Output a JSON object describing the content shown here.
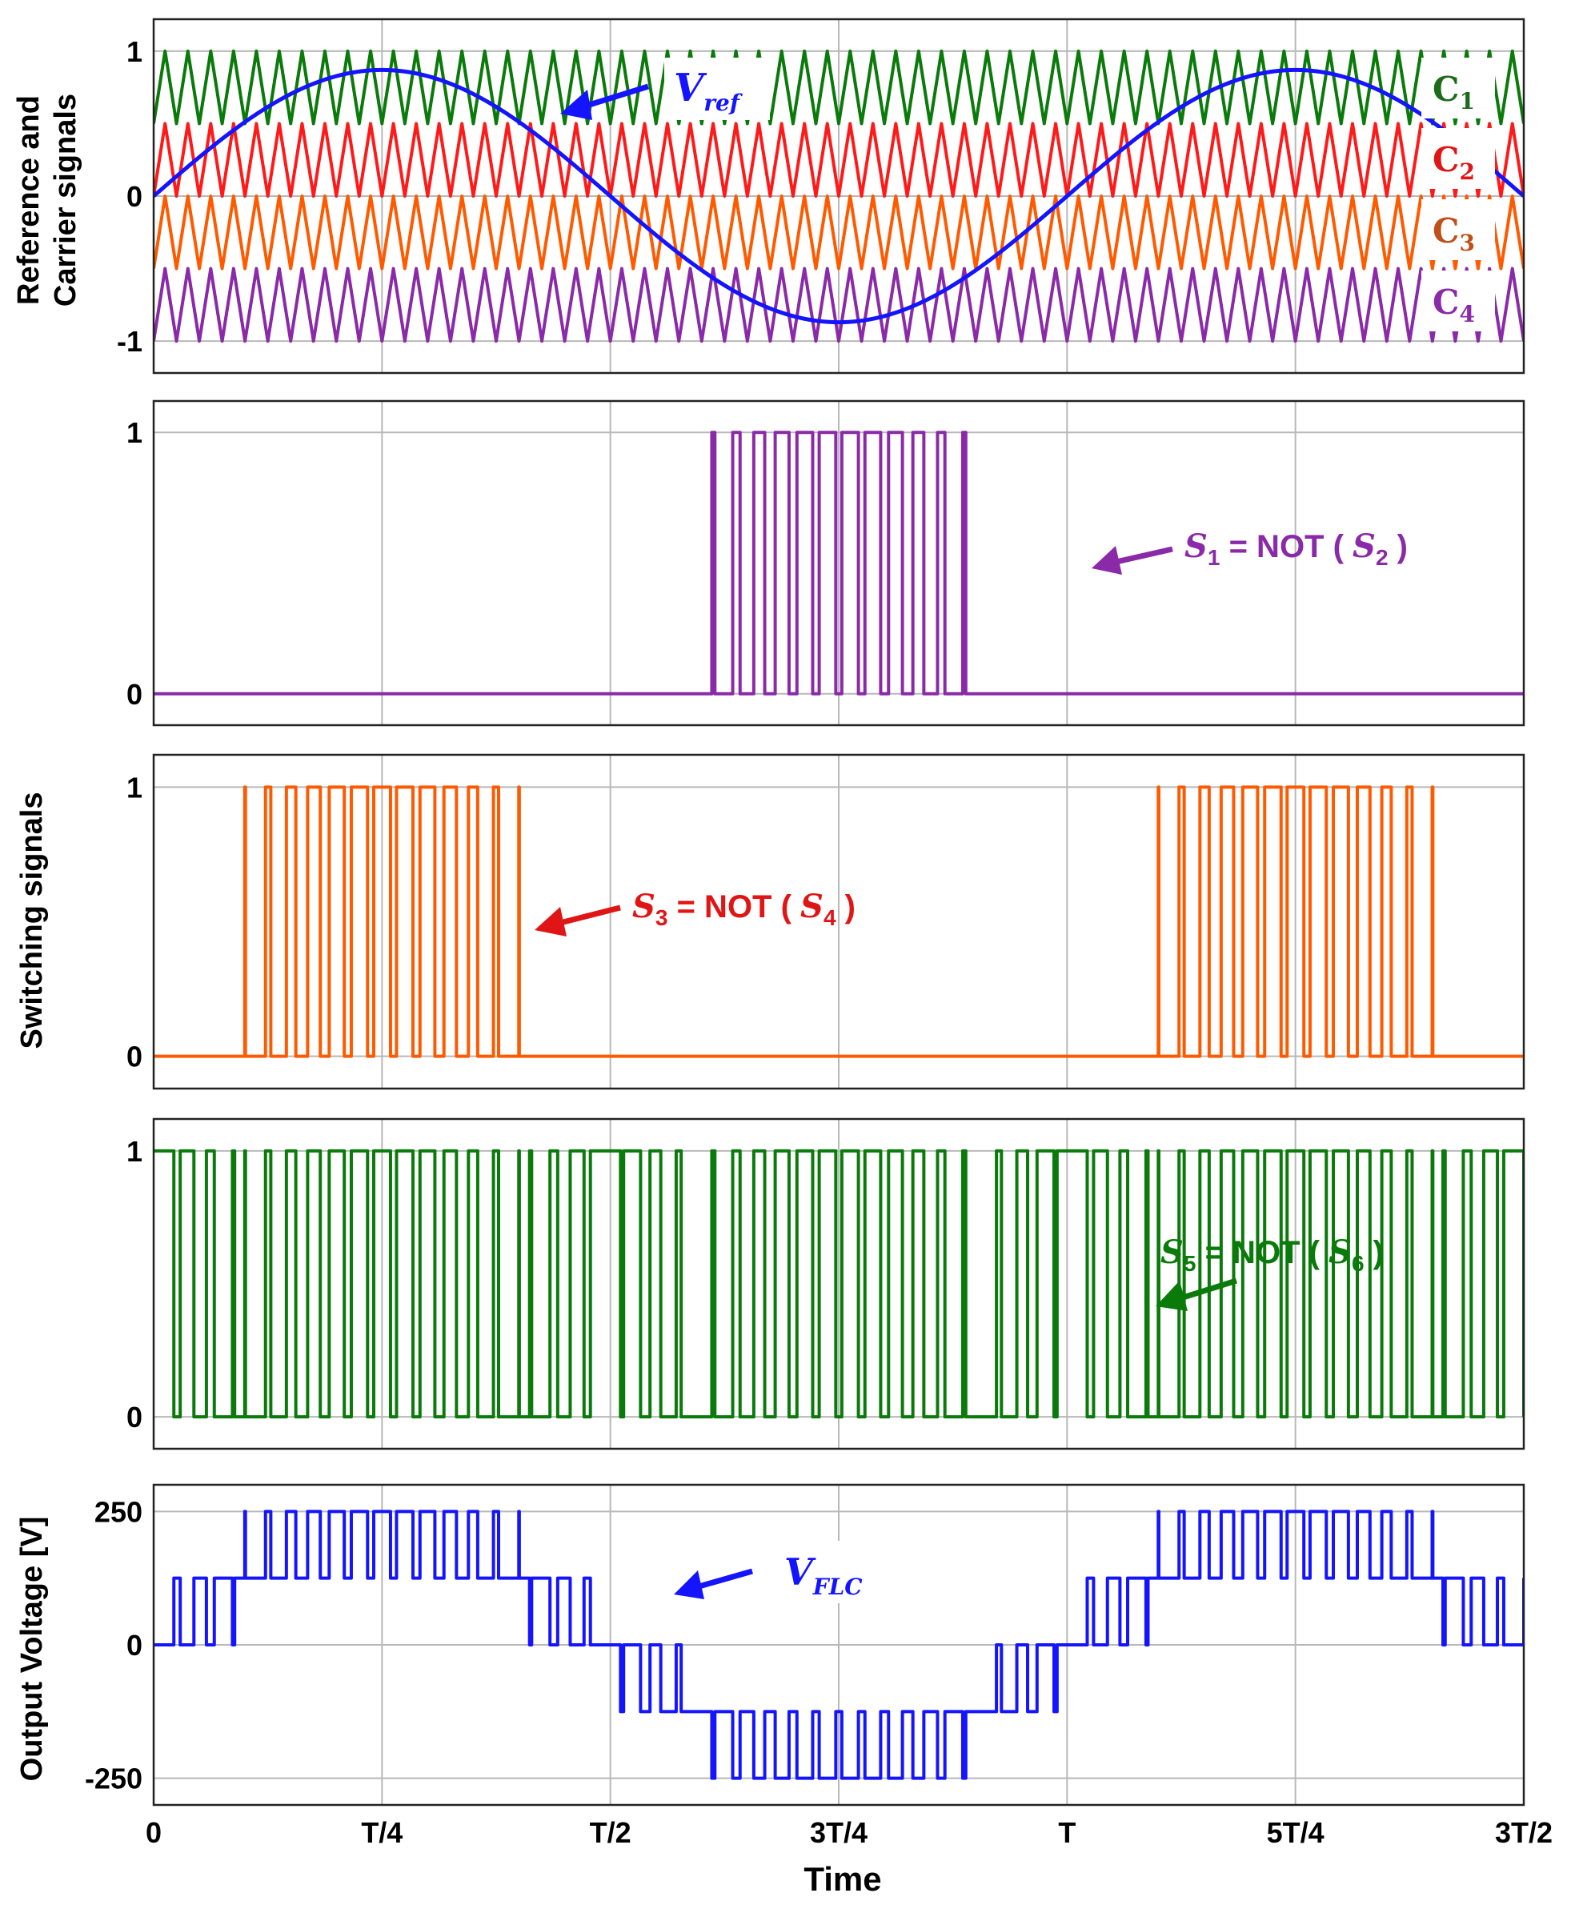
{
  "colors": {
    "blue": "#1414ff",
    "green": "#0a7a0a",
    "red": "#ff1a1a",
    "orange": "#ff5a00",
    "purple": "#8a2aa8",
    "c1_text": "#1b6b1b",
    "c2_text": "#e01515",
    "c3_text": "#c0501a",
    "c4_text": "#8a2aa8"
  },
  "figure": {
    "xlabel": "Time",
    "x_ticks": [
      "0",
      "T/4",
      "T/2",
      "3T/4",
      "T",
      "5T/4",
      "3T/2"
    ],
    "ylabel_panel1_line1": "Reference and",
    "ylabel_panel1_line2": "Carrier signals",
    "ylabel_switching": "Switching signals",
    "ylabel_output": "Output Voltage [V]"
  },
  "chart_data": [
    {
      "type": "line",
      "panel": "reference-carriers",
      "x_range": [
        0,
        1.5
      ],
      "x_unit": "T",
      "ylim": [
        -1.22,
        1.22
      ],
      "y_ticks": [
        "1",
        "0",
        "-1"
      ],
      "y_tick_values": [
        1,
        0,
        -1
      ],
      "grid": true,
      "reference": {
        "name": "V",
        "subscript": "ref",
        "amplitude": 0.87,
        "period": 1
      },
      "carriers": [
        {
          "name": "C",
          "subscript": "1",
          "min": 0.5,
          "max": 1.0
        },
        {
          "name": "C",
          "subscript": "2",
          "min": 0.0,
          "max": 0.5
        },
        {
          "name": "C",
          "subscript": "3",
          "min": -0.5,
          "max": 0.0
        },
        {
          "name": "C",
          "subscript": "4",
          "min": -1.0,
          "max": -0.5
        }
      ],
      "carrier_periods_per_T": 40
    },
    {
      "type": "line",
      "panel": "switch-s1",
      "x_range": [
        0,
        1.5
      ],
      "ylim": [
        -0.12,
        1.12
      ],
      "y_ticks": [
        "1",
        "0"
      ],
      "y_tick_values": [
        1,
        0
      ],
      "grid": true,
      "signal": "reference below C4",
      "annotation": {
        "lhs": "S",
        "lhs_sub": "1",
        "op": " = NOT ( ",
        "rhs": "S",
        "rhs_sub": "2",
        "close": " )"
      }
    },
    {
      "type": "line",
      "panel": "switch-s3",
      "x_range": [
        0,
        1.5
      ],
      "ylim": [
        -0.12,
        1.12
      ],
      "y_ticks": [
        "1",
        "0"
      ],
      "y_tick_values": [
        1,
        0
      ],
      "grid": true,
      "signal": "reference above C1",
      "annotation": {
        "lhs": "S",
        "lhs_sub": "3",
        "op": " = NOT ( ",
        "rhs": "S",
        "rhs_sub": "4",
        "close": " )"
      }
    },
    {
      "type": "line",
      "panel": "switch-s5",
      "x_range": [
        0,
        1.5
      ],
      "ylim": [
        -0.12,
        1.12
      ],
      "y_ticks": [
        "1",
        "0"
      ],
      "y_tick_values": [
        1,
        0
      ],
      "grid": true,
      "signal": "reference between C2 and C3 compare",
      "annotation": {
        "lhs": "S",
        "lhs_sub": "5",
        "op": " = NOT ( ",
        "rhs": "S",
        "rhs_sub": "6",
        "close": " )"
      }
    },
    {
      "type": "line",
      "panel": "output-voltage",
      "x_range": [
        0,
        1.5
      ],
      "ylim": [
        -300,
        300
      ],
      "y_ticks": [
        "250",
        "0",
        "-250"
      ],
      "y_tick_values": [
        250,
        0,
        -250
      ],
      "grid": true,
      "levels": [
        -250,
        -125,
        0,
        125,
        250
      ],
      "annotation": {
        "name": "V",
        "subscript": "FLC"
      }
    }
  ]
}
